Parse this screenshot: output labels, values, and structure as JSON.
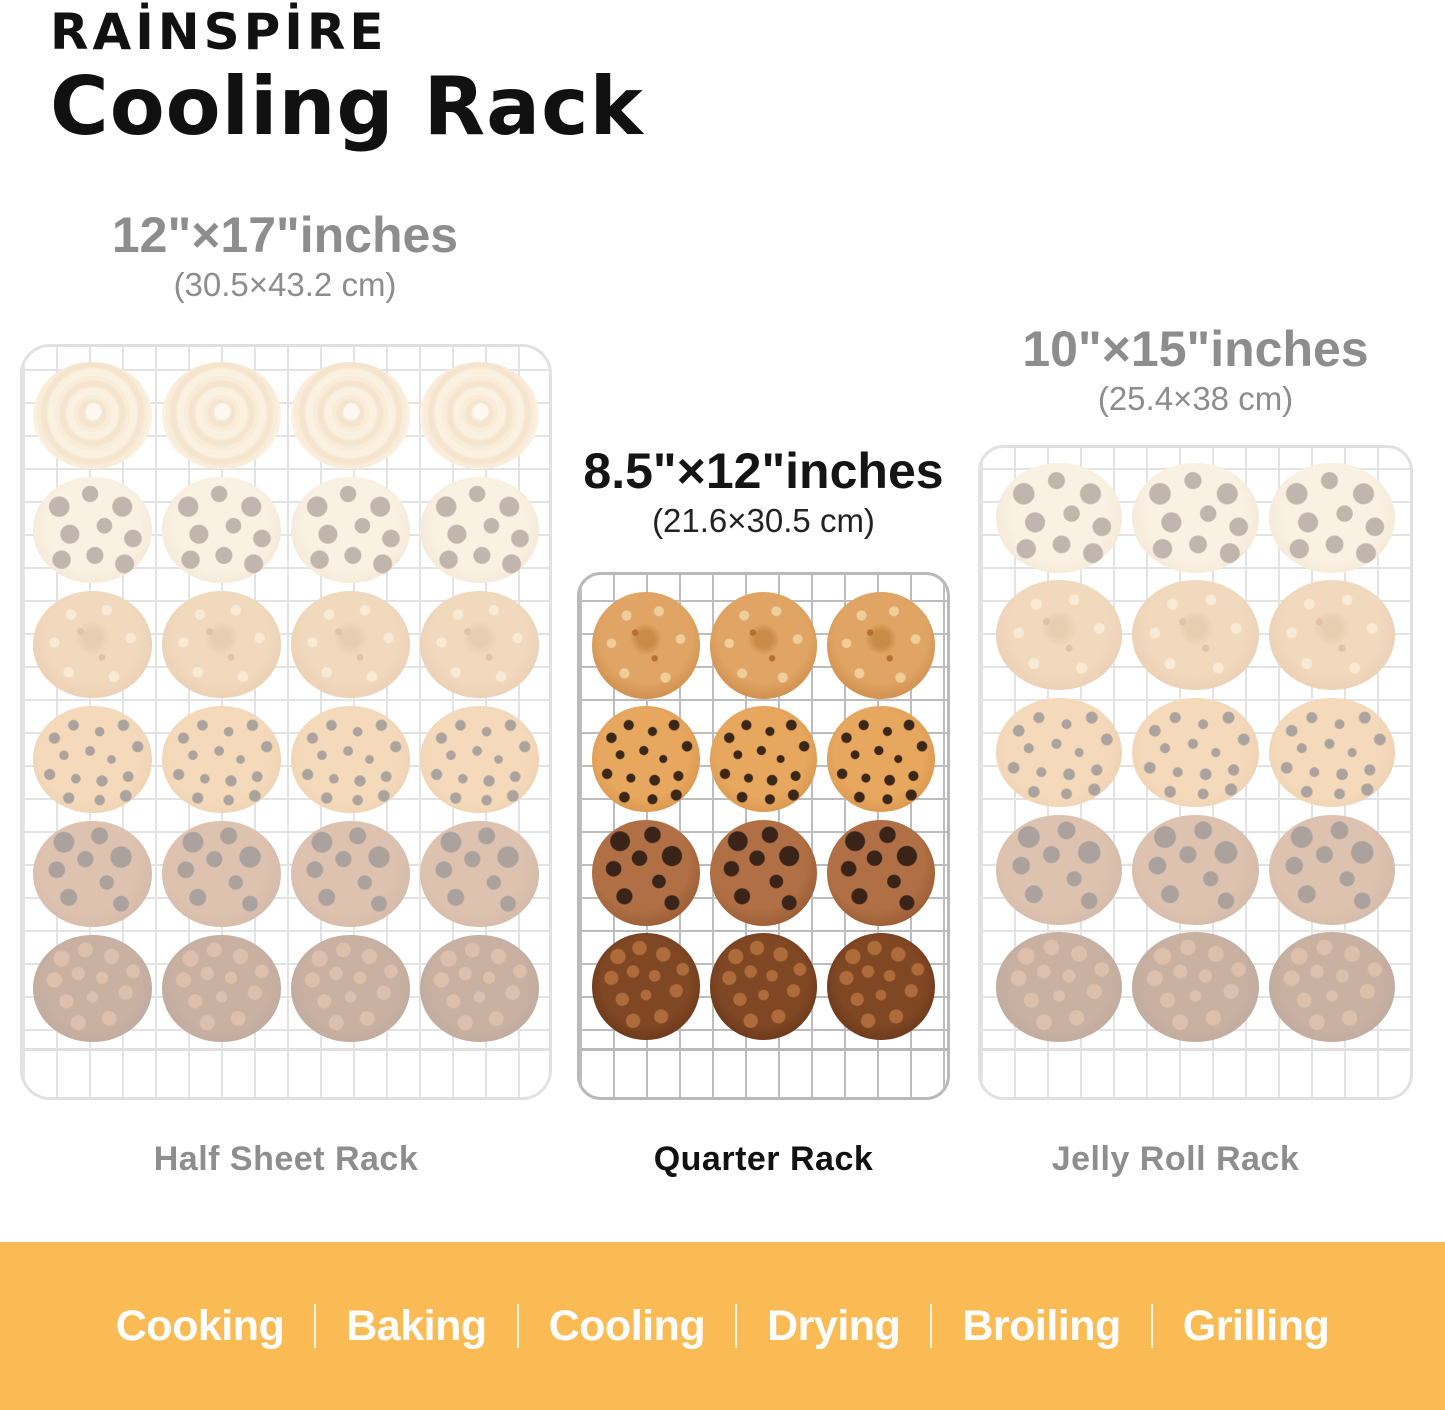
{
  "brand": {
    "logo": "RAİNSPİRE",
    "product_title": "Cooling Rack"
  },
  "racks": [
    {
      "id": "half-sheet",
      "size_inches": "12\"×17\"inches",
      "size_cm": "(30.5×43.2 cm)",
      "caption": "Half Sheet Rack",
      "columns": 4,
      "cookie_rows": [
        "swirl-butter-cookie",
        "chocolate-chip-cookie",
        "amaretti-cookie",
        "chip-sprinkle-cookie",
        "brown-choc-chip-cookie",
        "dark-chocolate-cookie"
      ],
      "faded": true
    },
    {
      "id": "quarter",
      "size_inches": "8.5\"×12\"inches",
      "size_cm": "(21.6×30.5 cm)",
      "caption": "Quarter Rack",
      "columns": 3,
      "cookie_rows": [
        "amaretti-cookie",
        "chip-sprinkle-cookie",
        "brown-choc-chip-cookie",
        "dark-chocolate-cookie"
      ],
      "faded": false
    },
    {
      "id": "jelly-roll",
      "size_inches": "10\"×15\"inches",
      "size_cm": "(25.4×38 cm)",
      "caption": "Jelly Roll Rack",
      "columns": 3,
      "cookie_rows": [
        "chocolate-chip-cookie",
        "amaretti-cookie",
        "chip-sprinkle-cookie",
        "brown-choc-chip-cookie",
        "dark-chocolate-cookie"
      ],
      "faded": true
    }
  ],
  "banner": {
    "items": [
      "Cooking",
      "Baking",
      "Cooling",
      "Drying",
      "Broiling",
      "Grilling"
    ],
    "separator": "|",
    "background_color": "#FABB55",
    "text_color": "#FFFFFF"
  },
  "colors": {
    "label_gray": "#8D8D8D",
    "highlight_black": "#111111",
    "wire_gray": "#BDBDBD"
  }
}
